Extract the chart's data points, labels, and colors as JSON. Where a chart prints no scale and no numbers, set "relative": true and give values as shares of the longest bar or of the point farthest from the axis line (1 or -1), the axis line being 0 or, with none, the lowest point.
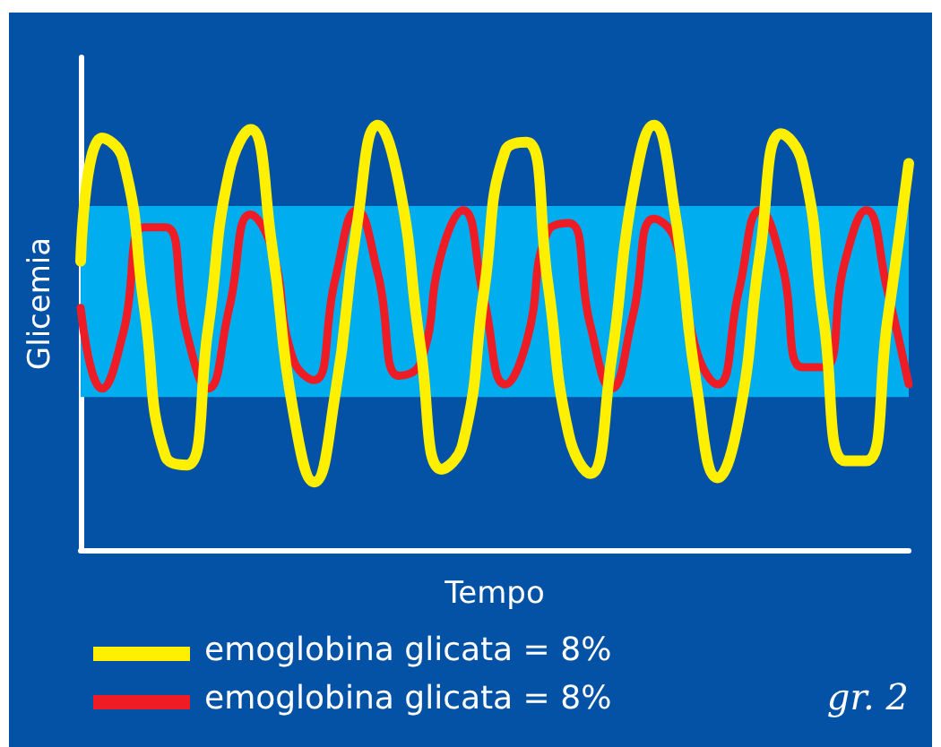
{
  "chart_data": {
    "type": "line",
    "relative": true,
    "xlabel": "Tempo",
    "ylabel": "Glicemia",
    "categories": [
      null,
      null,
      null,
      null,
      null,
      null,
      null,
      null,
      null,
      null,
      null,
      null,
      null,
      null,
      null,
      null,
      null,
      null,
      null,
      null,
      null,
      null,
      null,
      null,
      null,
      null,
      null,
      null,
      null,
      null,
      null,
      null,
      null,
      null,
      null,
      null,
      null,
      null,
      null,
      null
    ],
    "series": [
      {
        "name": "emoglobina glicata = 8%",
        "color": "#ffef00",
        "values": [
          0.68,
          0.97,
          0.92,
          0.57,
          0.22,
          0.2,
          0.52,
          0.89,
          0.99,
          0.72,
          0.33,
          0.16,
          0.37,
          0.76,
          1,
          0.86,
          0.48,
          0.19,
          0.25,
          0.61,
          0.94,
          0.96,
          0.63,
          0.27,
          0.18,
          0.45,
          0.84,
          1,
          0.79,
          0.39,
          0.17,
          0.31,
          0.7,
          0.98,
          0.91,
          0.54,
          0.21,
          0.21,
          0.54,
          0.91
        ]
      },
      {
        "name": "emoglobina glicata = 8%",
        "color": "#ee1c25",
        "values": [
          0.57,
          0.38,
          0.51,
          0.76,
          0.76,
          0.51,
          0.38,
          0.57,
          0.79,
          0.71,
          0.45,
          0.4,
          0.64,
          0.8,
          0.65,
          0.41,
          0.44,
          0.7,
          0.8,
          0.59,
          0.39,
          0.49,
          0.75,
          0.77,
          0.53,
          0.38,
          0.55,
          0.78,
          0.73,
          0.47,
          0.39,
          0.61,
          0.8,
          0.68,
          0.43,
          0.43,
          0.68,
          0.8,
          0.61,
          0.39
        ]
      }
    ],
    "bands": [
      {
        "axis": "y",
        "from": 0.36,
        "to": 0.81,
        "color": "#00adef"
      }
    ],
    "annotations": [
      "gr. 2"
    ],
    "legend": "bottom left",
    "grid": false,
    "marker": "none",
    "line_style": "solid"
  }
}
